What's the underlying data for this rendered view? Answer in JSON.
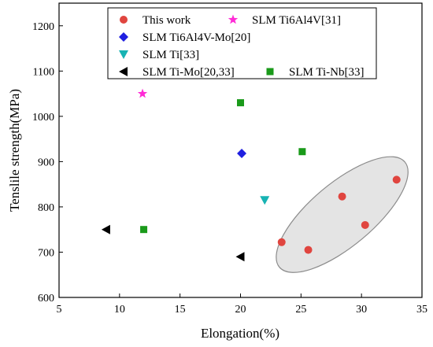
{
  "chart_data": {
    "type": "scatter",
    "xlabel": "Elongation(%)",
    "ylabel": "Tenslile strength(MPa)",
    "xlim": [
      5,
      35
    ],
    "ylim": [
      600,
      1250
    ],
    "x_ticks": [
      "5",
      "10",
      "15",
      "20",
      "25",
      "30",
      "35"
    ],
    "y_ticks": [
      "600",
      "700",
      "800",
      "900",
      "1000",
      "1100",
      "1200"
    ],
    "grid": false,
    "legend_position": "top",
    "series": [
      {
        "name": "This work",
        "marker": "circle",
        "color": "#e0453f",
        "points": [
          [
            23.4,
            722
          ],
          [
            25.6,
            705
          ],
          [
            28.4,
            823
          ],
          [
            30.3,
            760
          ],
          [
            32.9,
            860
          ]
        ]
      },
      {
        "name": "SLM Ti6Al4V[31]",
        "marker": "star",
        "color": "#ff2bd6",
        "points": [
          [
            11.9,
            1050
          ]
        ]
      },
      {
        "name": "SLM Ti6Al4V-Mo[20]",
        "marker": "diamond",
        "color": "#1f1fe0",
        "points": [
          [
            20.1,
            918
          ]
        ]
      },
      {
        "name": "SLM Ti[33]",
        "marker": "triangle-down",
        "color": "#17b3b3",
        "points": [
          [
            22.0,
            815
          ]
        ]
      },
      {
        "name": "SLM Ti-Mo[20,33]",
        "marker": "triangle-left",
        "color": "#000000",
        "points": [
          [
            8.9,
            750
          ],
          [
            20.0,
            690
          ]
        ]
      },
      {
        "name": "SLM Ti-Nb[33]",
        "marker": "square",
        "color": "#1a9a1a",
        "points": [
          [
            20.0,
            1030
          ],
          [
            12.0,
            750
          ],
          [
            25.1,
            922
          ]
        ]
      }
    ],
    "annotations": [
      {
        "type": "ellipse",
        "fill": "#e4e4e4",
        "stroke": "#8c8c8c",
        "center": [
          28.4,
          783
        ],
        "radii": [
          10.0,
          52
        ],
        "rotation_deg": -40
      }
    ]
  }
}
